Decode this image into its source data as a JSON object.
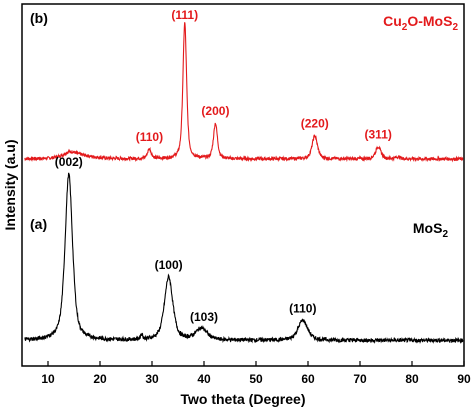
{
  "chart_data": {
    "type": "line",
    "xlabel": "Two theta (Degree)",
    "ylabel": "Intensity (a.u)",
    "xlim": [
      5,
      90
    ],
    "xticks": [
      10,
      20,
      30,
      40,
      50,
      60,
      70,
      80,
      90
    ],
    "y_ticks_shown": false,
    "grid": false,
    "panels": [
      {
        "panel_label": "(b)",
        "name": "Cu2O-MoS2",
        "legend_parts": [
          {
            "t": "Cu",
            "sub": false
          },
          {
            "t": "2",
            "sub": true
          },
          {
            "t": "O-MoS",
            "sub": false
          },
          {
            "t": "2",
            "sub": true
          }
        ],
        "color": "#e31a1c",
        "baseline": 0.03,
        "peaks": [
          {
            "x": 14.2,
            "h": 0.04,
            "w": 1.6
          },
          {
            "x": 16.5,
            "h": 0.02,
            "w": 3.0
          },
          {
            "x": 29.5,
            "h": 0.07,
            "w": 0.45
          },
          {
            "x": 36.3,
            "h": 1.0,
            "w": 0.42
          },
          {
            "x": 42.2,
            "h": 0.26,
            "w": 0.45
          },
          {
            "x": 61.3,
            "h": 0.17,
            "w": 0.6
          },
          {
            "x": 73.5,
            "h": 0.09,
            "w": 0.6
          },
          {
            "x": 77.3,
            "h": 0.015,
            "w": 0.5
          }
        ],
        "annotations": [
          {
            "label": "(110)",
            "x": 29.5
          },
          {
            "label": "(111)",
            "x": 36.3
          },
          {
            "label": "(200)",
            "x": 42.2
          },
          {
            "label": "(220)",
            "x": 61.3
          },
          {
            "label": "(311)",
            "x": 73.5
          }
        ]
      },
      {
        "panel_label": "(a)",
        "name": "MoS2",
        "legend_parts": [
          {
            "t": "MoS",
            "sub": false
          },
          {
            "t": "2",
            "sub": true
          }
        ],
        "color": "#000000",
        "baseline": 0.04,
        "peaks": [
          {
            "x": 14.0,
            "h": 1.0,
            "w": 0.85
          },
          {
            "x": 28.0,
            "h": 0.03,
            "w": 0.25
          },
          {
            "x": 33.2,
            "h": 0.38,
            "w": 0.95
          },
          {
            "x": 39.5,
            "h": 0.07,
            "w": 1.3
          },
          {
            "x": 59.0,
            "h": 0.12,
            "w": 1.1
          }
        ],
        "annotations": [
          {
            "label": "(002)",
            "x": 14.0
          },
          {
            "label": "(100)",
            "x": 33.2
          },
          {
            "label": "(103)",
            "x": 40.0
          },
          {
            "label": "(110)",
            "x": 59.0
          }
        ]
      }
    ]
  }
}
